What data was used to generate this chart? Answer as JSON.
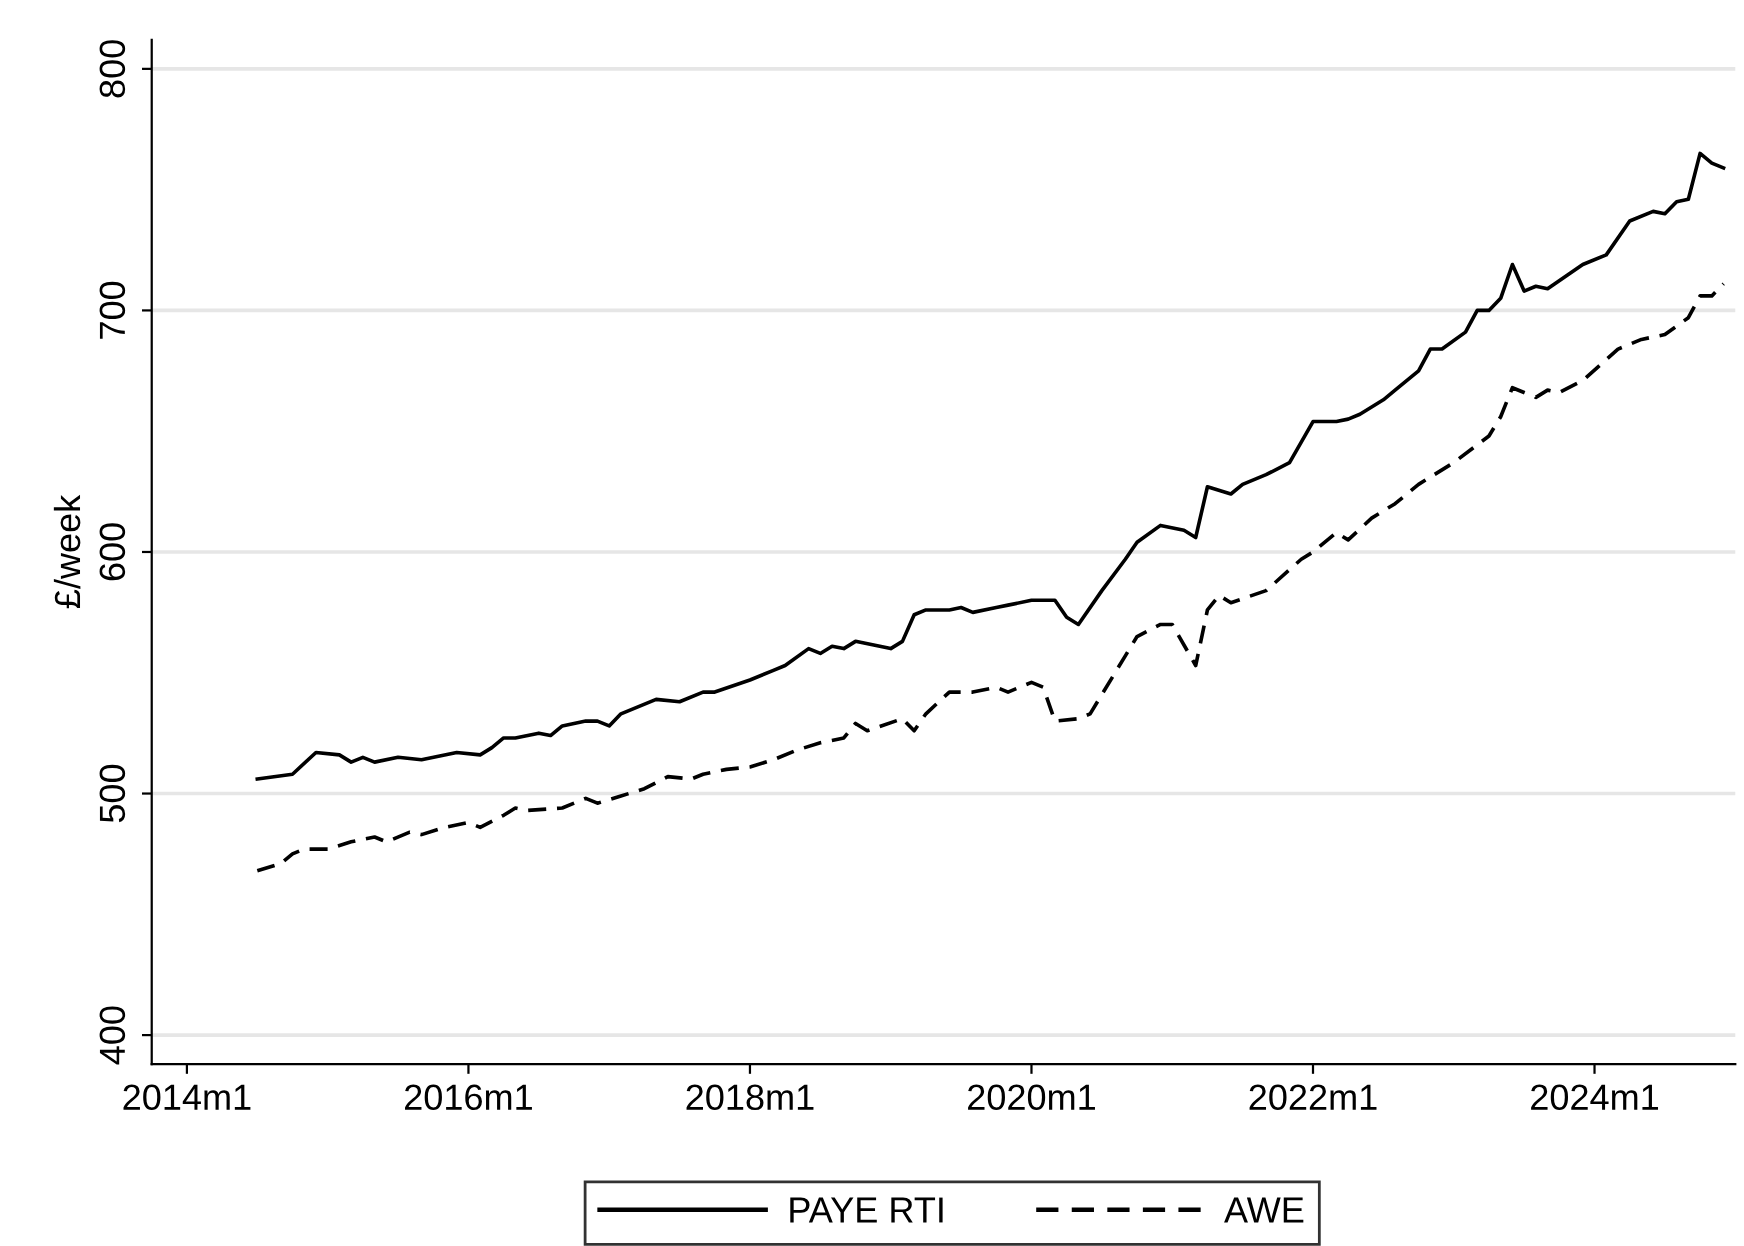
{
  "chart_data": {
    "type": "line",
    "ylabel": "£/week",
    "legend": "bottom",
    "grid": "y",
    "marker": "none",
    "xlim": [
      "2013-10",
      "2025-01"
    ],
    "ylim": [
      388,
      812
    ],
    "xticks": [
      {
        "value": "2014-01",
        "label": "2014m1"
      },
      {
        "value": "2016-01",
        "label": "2016m1"
      },
      {
        "value": "2018-01",
        "label": "2018m1"
      },
      {
        "value": "2020-01",
        "label": "2020m1"
      },
      {
        "value": "2022-01",
        "label": "2022m1"
      },
      {
        "value": "2024-01",
        "label": "2024m1"
      }
    ],
    "yticks": [
      400,
      500,
      600,
      700,
      800
    ],
    "series": [
      {
        "name": "PAYE RTI",
        "color": "#000000",
        "line_style": "solid",
        "x": [
          "2014-07",
          "2014-10",
          "2014-12",
          "2015-02",
          "2015-03",
          "2015-04",
          "2015-05",
          "2015-07",
          "2015-09",
          "2015-12",
          "2016-02",
          "2016-03",
          "2016-04",
          "2016-05",
          "2016-07",
          "2016-08",
          "2016-09",
          "2016-11",
          "2016-12",
          "2017-01",
          "2017-02",
          "2017-05",
          "2017-07",
          "2017-09",
          "2017-10",
          "2018-01",
          "2018-03",
          "2018-04",
          "2018-06",
          "2018-07",
          "2018-08",
          "2018-09",
          "2018-10",
          "2019-01",
          "2019-02",
          "2019-03",
          "2019-04",
          "2019-06",
          "2019-07",
          "2019-08",
          "2019-10",
          "2019-11",
          "2020-01",
          "2020-03",
          "2020-04",
          "2020-05",
          "2020-07",
          "2020-09",
          "2020-10",
          "2020-12",
          "2021-02",
          "2021-03",
          "2021-04",
          "2021-06",
          "2021-07",
          "2021-09",
          "2021-11",
          "2022-01",
          "2022-03",
          "2022-04",
          "2022-05",
          "2022-07",
          "2022-08",
          "2022-10",
          "2022-11",
          "2022-12",
          "2023-02",
          "2023-03",
          "2023-04",
          "2023-05",
          "2023-06",
          "2023-07",
          "2023-08",
          "2023-09",
          "2023-12",
          "2024-02",
          "2024-04",
          "2024-06",
          "2024-07",
          "2024-08",
          "2024-09",
          "2024-10",
          "2024-11",
          "2024-12"
        ],
        "values": [
          506,
          508,
          517,
          516,
          513,
          515,
          513,
          515,
          514,
          517,
          516,
          519,
          523,
          523,
          525,
          524,
          528,
          530,
          530,
          528,
          533,
          539,
          538,
          542,
          542,
          547,
          551,
          553,
          560,
          558,
          561,
          560,
          563,
          560,
          563,
          574,
          576,
          576,
          577,
          575,
          577,
          578,
          580,
          580,
          573,
          570,
          584,
          597,
          604,
          611,
          609,
          606,
          627,
          624,
          628,
          632,
          637,
          654,
          654,
          655,
          657,
          663,
          667,
          675,
          684,
          684,
          691,
          700,
          700,
          705,
          719,
          708,
          710,
          709,
          719,
          723,
          737,
          741,
          740,
          745,
          746,
          765,
          761,
          759
        ]
      },
      {
        "name": "AWE",
        "color": "#000000",
        "line_style": "dashed",
        "x": [
          "2014-07",
          "2014-09",
          "2014-10",
          "2014-11",
          "2015-01",
          "2015-03",
          "2015-05",
          "2015-06",
          "2015-08",
          "2015-09",
          "2015-11",
          "2016-01",
          "2016-02",
          "2016-04",
          "2016-05",
          "2016-06",
          "2016-09",
          "2016-11",
          "2016-12",
          "2017-02",
          "2017-04",
          "2017-06",
          "2017-08",
          "2017-09",
          "2017-11",
          "2018-01",
          "2018-03",
          "2018-05",
          "2018-07",
          "2018-09",
          "2018-10",
          "2018-11",
          "2019-02",
          "2019-03",
          "2019-04",
          "2019-06",
          "2019-08",
          "2019-10",
          "2019-11",
          "2020-01",
          "2020-02",
          "2020-03",
          "2020-05",
          "2020-06",
          "2020-09",
          "2020-10",
          "2020-12",
          "2021-01",
          "2021-03",
          "2021-04",
          "2021-05",
          "2021-06",
          "2021-09",
          "2021-12",
          "2022-01",
          "2022-03",
          "2022-04",
          "2022-06",
          "2022-08",
          "2022-10",
          "2023-01",
          "2023-04",
          "2023-05",
          "2023-06",
          "2023-08",
          "2023-09",
          "2023-10",
          "2023-12",
          "2024-03",
          "2024-05",
          "2024-07",
          "2024-09",
          "2024-10",
          "2024-11",
          "2024-12"
        ],
        "values": [
          468,
          471,
          475,
          477,
          477,
          480,
          482,
          480,
          484,
          483,
          486,
          488,
          486,
          491,
          494,
          493,
          494,
          498,
          496,
          499,
          502,
          507,
          506,
          508,
          510,
          511,
          514,
          518,
          521,
          523,
          529,
          526,
          531,
          526,
          533,
          542,
          542,
          544,
          542,
          546,
          544,
          530,
          531,
          533,
          557,
          565,
          570,
          570,
          553,
          576,
          582,
          579,
          584,
          597,
          600,
          608,
          605,
          614,
          620,
          628,
          637,
          648,
          656,
          668,
          664,
          667,
          666,
          671,
          684,
          688,
          690,
          697,
          706,
          706,
          711
        ]
      }
    ]
  }
}
